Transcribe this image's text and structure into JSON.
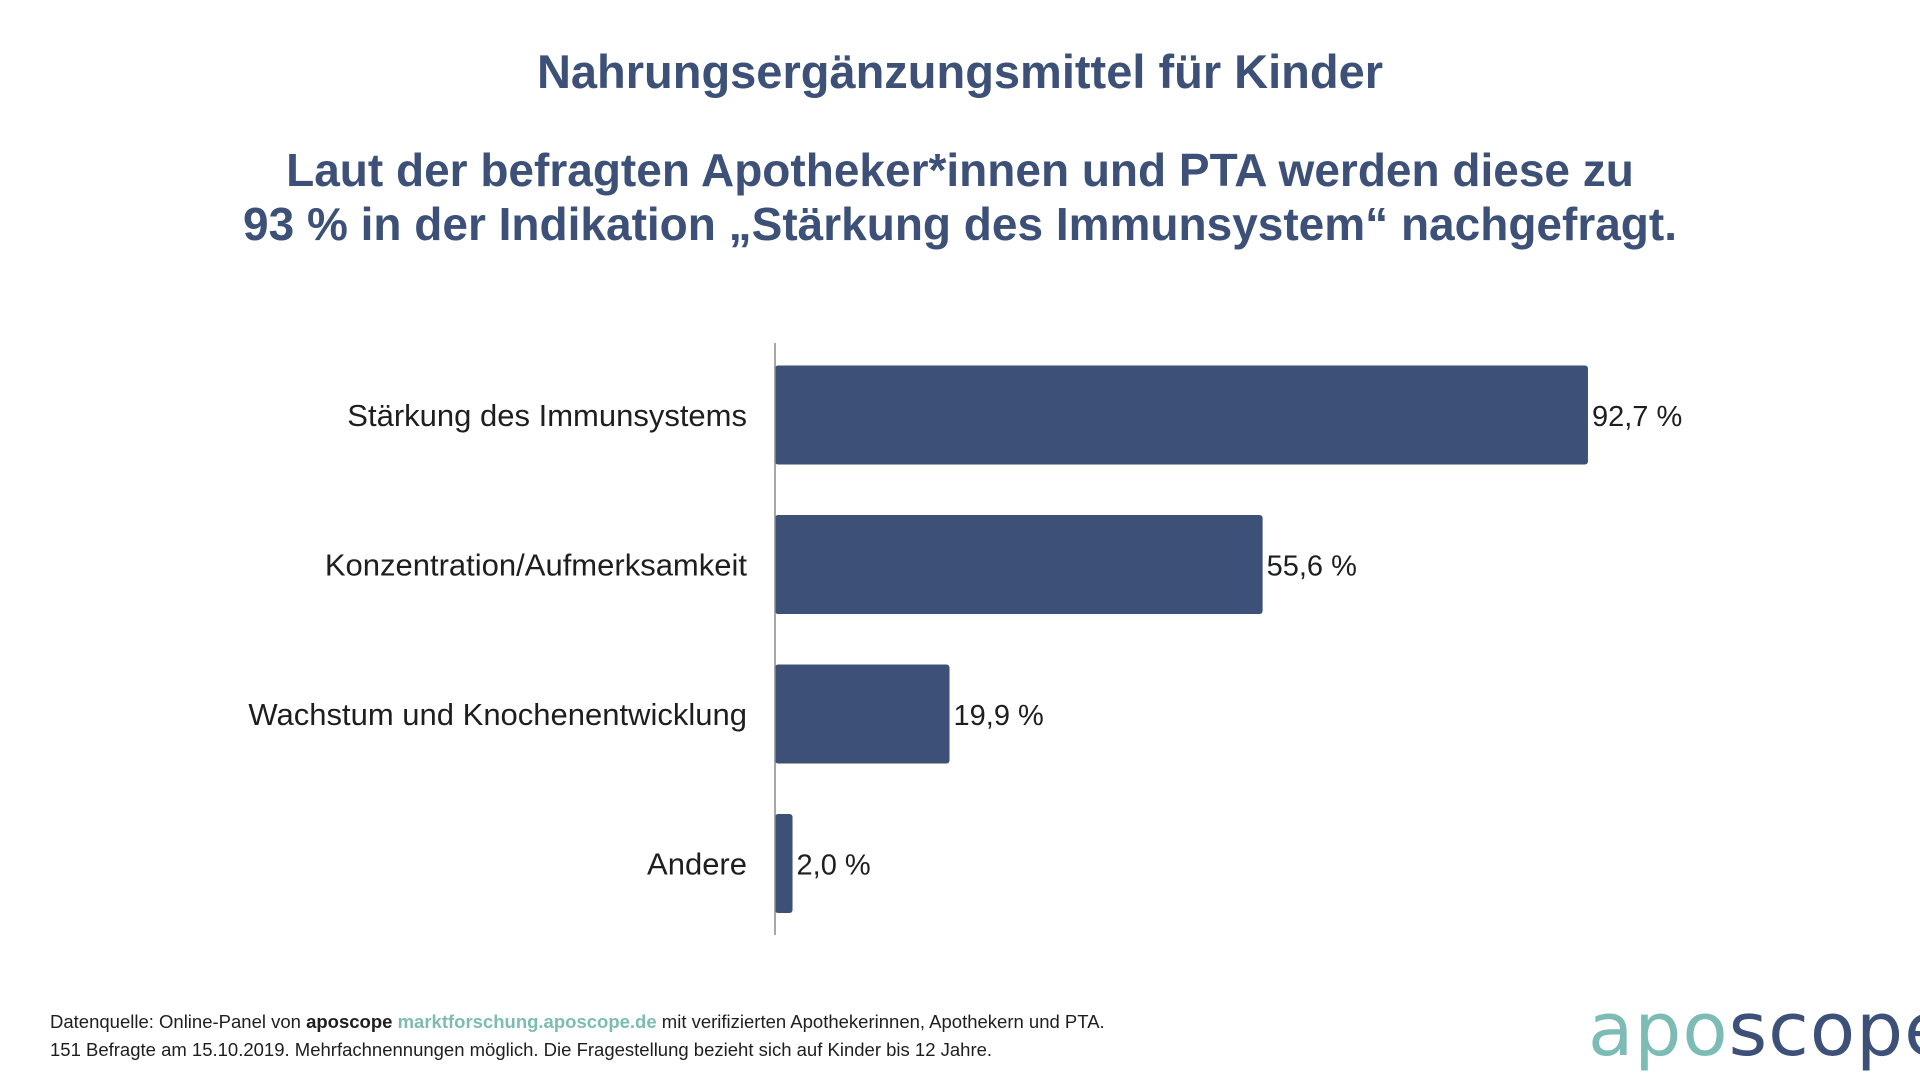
{
  "title": "Nahrungsergänzungsmittel für Kinder",
  "subtitle_line1": "Laut der befragten Apotheker*innen und PTA werden diese zu",
  "subtitle_line2": "93 % in der Indikation „Stärkung des Immunsystem“ nachgefragt.",
  "colors": {
    "bar": "#3c5078",
    "title": "#3c5078",
    "accent": "#7cbcb4"
  },
  "chart_data": {
    "type": "bar",
    "orientation": "horizontal",
    "categories": [
      "Stärkung des Immunsystems",
      "Konzentration/Aufmerksamkeit",
      "Wachstum und Knochenentwicklung",
      "Andere"
    ],
    "values": [
      92.7,
      55.6,
      19.9,
      2.0
    ],
    "value_labels": [
      "92,7 %",
      "55,6 %",
      "19,9 %",
      "2,0 %"
    ],
    "xlim": [
      0,
      100
    ],
    "grid": false,
    "legend": "none"
  },
  "footnote": {
    "prefix": "Datenquelle: Online-Panel von ",
    "brand": "aposcope",
    "link": "marktforschung.aposcope.de",
    "suffix": " mit verifizierten Apothekerinnen, Apothekern und PTA.",
    "line2": "151 Befragte am 15.10.2019. Mehrfachnennungen möglich. Die Fragestellung bezieht sich auf Kinder bis 12 Jahre."
  },
  "logo": {
    "part1": "apo",
    "part2": "scope"
  }
}
